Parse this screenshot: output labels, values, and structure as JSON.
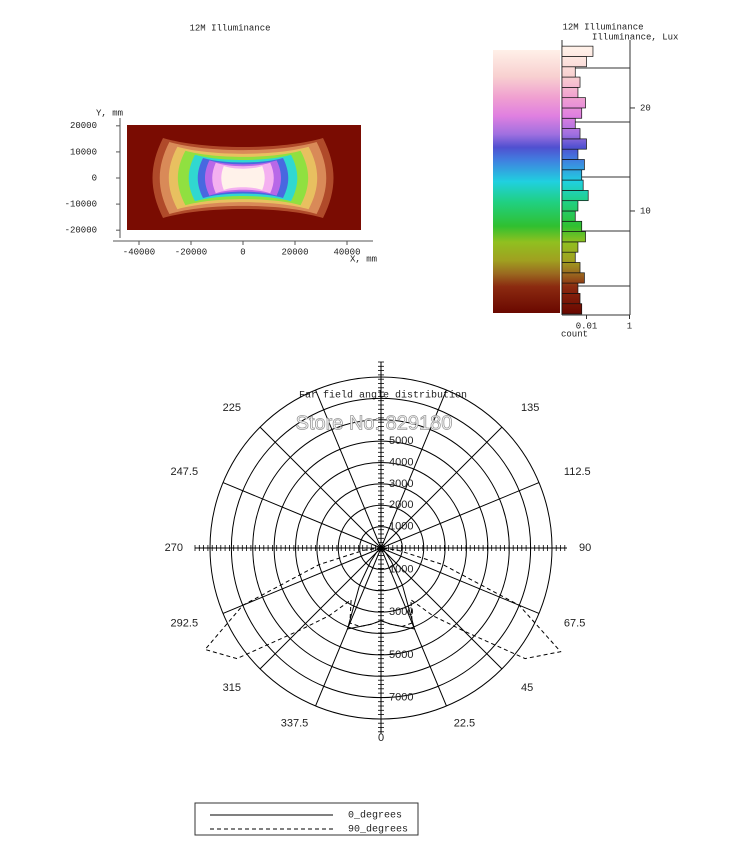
{
  "chart_data": [
    {
      "type": "heatmap",
      "title": "12M Illuminance",
      "xlabel": "X, mm",
      "ylabel": "Y, mm",
      "xlim": [
        -50000,
        50000
      ],
      "ylim": [
        -23000,
        23000
      ],
      "xticks": [
        -40000,
        -20000,
        0,
        20000,
        40000
      ],
      "yticks": [
        20000,
        10000,
        0,
        -10000,
        -20000
      ]
    },
    {
      "type": "histogram",
      "title": "12M Illuminance",
      "ylabel": "Illuminance, Lux",
      "xlabel": "count",
      "xscale": "log",
      "xlim": [
        0.001,
        1
      ],
      "xticks": [
        0.01,
        1
      ],
      "ylim": [
        0,
        26.5
      ],
      "yticks": [
        10,
        20
      ],
      "bins": [
        0,
        1,
        2,
        3,
        4,
        5,
        6,
        7,
        8,
        9,
        10,
        11,
        12,
        13,
        14,
        15,
        16,
        17,
        18,
        19,
        20,
        21,
        22,
        23,
        24,
        25,
        26
      ],
      "values": [
        0.006,
        0.005,
        0.004,
        0.008,
        0.005,
        0.003,
        0.004,
        0.009,
        0.006,
        0.003,
        0.004,
        0.012,
        0.007,
        0.006,
        0.008,
        0.004,
        0.01,
        0.005,
        0.003,
        0.006,
        0.009,
        0.004,
        0.005,
        0.003,
        0.01,
        0.02
      ]
    },
    {
      "type": "polar",
      "title": "Far field angle distribution",
      "watermark": "Store No: 829180",
      "angle_ticks": [
        0,
        22.5,
        45,
        67.5,
        90,
        112.5,
        135,
        225,
        247.5,
        270,
        292.5,
        315,
        337.5
      ],
      "rlim": [
        0,
        8000
      ],
      "rticks": [
        1000,
        2000,
        3000,
        4000,
        5000,
        6000,
        7000,
        8000
      ],
      "rtick_labels_up": [
        1000,
        2000,
        3000,
        4000,
        5000
      ],
      "rtick_labels_down": [
        1000,
        3000,
        5000,
        7000
      ],
      "angles": [
        270,
        277.5,
        285,
        292.5,
        300,
        307.5,
        315,
        322.5,
        330,
        337.5,
        345,
        352.5,
        0,
        7.5,
        15,
        22.5,
        30,
        37.5,
        45,
        52.5,
        60,
        67.5,
        75,
        82.5,
        90
      ],
      "series": [
        {
          "name": "0_degrees",
          "color": "#000000",
          "linestyle": "solid",
          "values": [
            0,
            0,
            0,
            0,
            0,
            100,
            300,
            800,
            2000,
            4100,
            3800,
            3600,
            3400,
            3600,
            3800,
            4100,
            2000,
            800,
            300,
            100,
            0,
            0,
            0,
            0,
            0
          ]
        },
        {
          "name": "90_degrees",
          "color": "#000000",
          "linestyle": "dashed",
          "values": [
            0,
            800,
            3000,
            7000,
            9500,
            8500,
            5500,
            4000,
            2800,
            3800,
            3800,
            3600,
            3400,
            3600,
            3800,
            3800,
            2800,
            4000,
            5500,
            8500,
            9700,
            7000,
            3000,
            800,
            0
          ]
        }
      ]
    }
  ]
}
